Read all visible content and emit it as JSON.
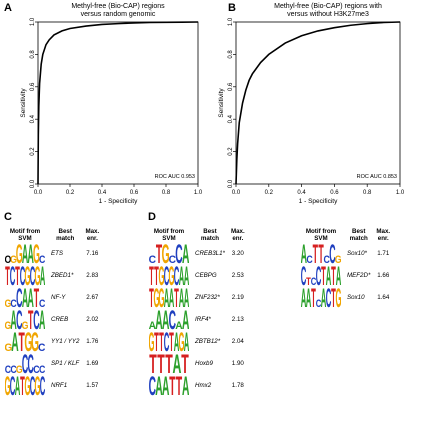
{
  "panels": {
    "A": {
      "letter": "A",
      "title_line1": "Methyl-free (Bio-CAP) regions",
      "title_line2": "versus random genomic",
      "auc_label": "ROC AUC 0.953"
    },
    "B": {
      "letter": "B",
      "title_line1": "Methyl-free (Bio-CAP) regions with",
      "title_line2": "versus without H3K27me3",
      "auc_label": "ROC AUC 0.853"
    },
    "C": {
      "letter": "C"
    },
    "D": {
      "letter": "D"
    }
  },
  "chart_data": [
    {
      "type": "line",
      "panel": "A",
      "title": "Methyl-free (Bio-CAP) regions versus random genomic",
      "xlabel": "1 - Specificity",
      "ylabel": "Sensitivity",
      "xlim": [
        0,
        1
      ],
      "ylim": [
        0,
        1
      ],
      "xticks": [
        "0.0",
        "0.2",
        "0.4",
        "0.6",
        "0.8",
        "1.0"
      ],
      "yticks": [
        "0.0",
        "0.2",
        "0.4",
        "0.6",
        "0.8",
        "1.0"
      ],
      "annotation": "ROC AUC 0.953",
      "series": [
        {
          "x": [
            0,
            0.002,
            0.005,
            0.01,
            0.02,
            0.03,
            0.05,
            0.07,
            0.1,
            0.15,
            0.2,
            0.3,
            0.4,
            0.5,
            0.6,
            0.7,
            0.8,
            0.9,
            1.0
          ],
          "y": [
            0,
            0.3,
            0.48,
            0.62,
            0.74,
            0.8,
            0.86,
            0.89,
            0.92,
            0.945,
            0.96,
            0.975,
            0.985,
            0.99,
            0.994,
            0.997,
            0.998,
            0.999,
            1.0
          ]
        }
      ]
    },
    {
      "type": "line",
      "panel": "B",
      "title": "Methyl-free (Bio-CAP) regions with versus without H3K27me3",
      "xlabel": "1 - Specificity",
      "ylabel": "Sensitivity",
      "xlim": [
        0,
        1
      ],
      "ylim": [
        0,
        1
      ],
      "xticks": [
        "0.0",
        "0.2",
        "0.4",
        "0.6",
        "0.8",
        "1.0"
      ],
      "yticks": [
        "0.0",
        "0.2",
        "0.4",
        "0.6",
        "0.8",
        "1.0"
      ],
      "annotation": "ROC AUC 0.853",
      "series": [
        {
          "x": [
            0,
            0.005,
            0.01,
            0.02,
            0.04,
            0.06,
            0.08,
            0.1,
            0.15,
            0.2,
            0.3,
            0.4,
            0.5,
            0.6,
            0.7,
            0.8,
            0.9,
            1.0
          ],
          "y": [
            0,
            0.15,
            0.25,
            0.38,
            0.5,
            0.58,
            0.64,
            0.68,
            0.75,
            0.8,
            0.87,
            0.915,
            0.945,
            0.965,
            0.98,
            0.99,
            0.997,
            1.0
          ]
        }
      ]
    }
  ],
  "table_headers": {
    "motif": [
      "Motif from",
      "SVM"
    ],
    "best": [
      "Best",
      "match"
    ],
    "enr": [
      "Max.",
      "enr."
    ]
  },
  "table_C": [
    {
      "logo": "ogGAAGc",
      "match": "ETS",
      "enr": "7.16"
    },
    {
      "logo": "TCTCGCGA",
      "match": "ZBED1*",
      "enr": "2.83"
    },
    {
      "logo": "gcCAATc",
      "match": "NF-Y",
      "enr": "2.67"
    },
    {
      "logo": "gACgTCA",
      "match": "CREB",
      "enr": "2.02"
    },
    {
      "logo": "gATGGc",
      "match": "YY1 / YY2",
      "enr": "1.76"
    },
    {
      "logo": "ccgCCcc",
      "match": "SP1 / KLF",
      "enr": "1.69"
    },
    {
      "logo": "GCATGCGC",
      "match": "NRF1",
      "enr": "1.57"
    }
  ],
  "table_D1": [
    {
      "logo": "cTGcCA",
      "match": "CREB3L1*",
      "enr": "3.20"
    },
    {
      "logo": "TTGCGCAA",
      "match": "CEBPG",
      "enr": "2.53"
    },
    {
      "logo": "TGGAATAA",
      "match": "ZNF232*",
      "enr": "2.19"
    },
    {
      "logo": "aAACaA",
      "match": "IRF4*",
      "enr": "2.13"
    },
    {
      "logo": "GTTCTAGA",
      "match": "ZBTB12*",
      "enr": "2.04"
    },
    {
      "logo": "TTTAT",
      "match": "Hoxb9",
      "enr": "1.90"
    },
    {
      "logo": "CAATTA",
      "match": "Hmx2",
      "enr": "1.78"
    }
  ],
  "table_D2": [
    {
      "logo": "AcTTcCg",
      "match": "Sox10*",
      "enr": "1.71"
    },
    {
      "logo": "CtcCTATA",
      "match": "MEF2D*",
      "enr": "1.66"
    },
    {
      "logo": "AATcACTG",
      "match": "Sox10",
      "enr": "1.64"
    }
  ],
  "colors": {
    "A": "#2ca02c",
    "C": "#1f3fbf",
    "G": "#f0a500",
    "T": "#d62020",
    "curve": "#000000"
  }
}
